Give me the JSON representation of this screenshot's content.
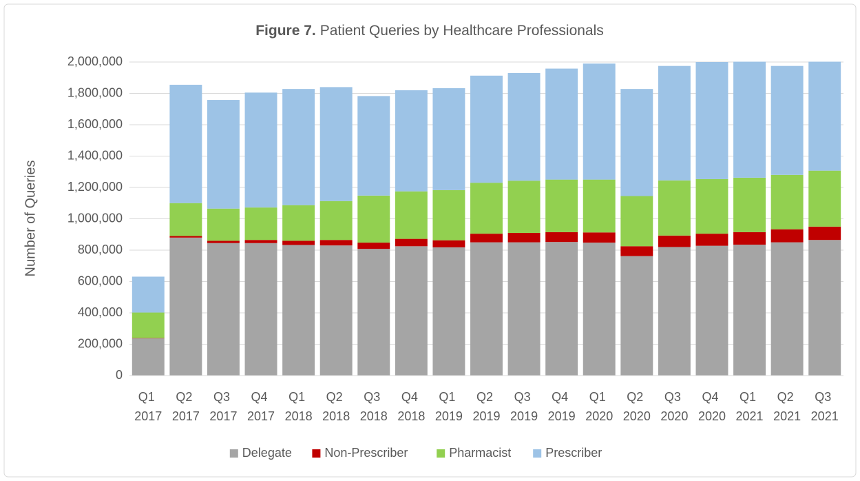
{
  "chart_data": {
    "type": "stacked_bar",
    "title_label": "Figure 7.",
    "title": "Patient Queries by Healthcare Professionals",
    "y_label": "Number of Queries",
    "categories": [
      "Q1 2017",
      "Q2 2017",
      "Q3 2017",
      "Q4 2017",
      "Q1 2018",
      "Q2 2018",
      "Q3 2018",
      "Q4 2018",
      "Q1 2019",
      "Q2 2019",
      "Q3 2019",
      "Q4 2019",
      "Q1 2020",
      "Q2 2020",
      "Q3 2020",
      "Q4 2020",
      "Q1 2021",
      "Q2 2021",
      "Q3 2021"
    ],
    "series": [
      {
        "name": "Delegate",
        "color": "#a5a5a5",
        "values": [
          237000,
          880000,
          845000,
          845000,
          833000,
          830000,
          808000,
          825000,
          818000,
          850000,
          850000,
          852000,
          848000,
          762000,
          820000,
          828000,
          835000,
          850000,
          865000
        ]
      },
      {
        "name": "Non-Prescriber",
        "color": "#c00000",
        "values": [
          2000,
          10000,
          15000,
          20000,
          27000,
          35000,
          40000,
          47000,
          45000,
          55000,
          60000,
          63000,
          65000,
          63000,
          73000,
          77000,
          80000,
          83000,
          85000
        ]
      },
      {
        "name": "Pharmacist",
        "color": "#92d050",
        "values": [
          163000,
          210000,
          205000,
          207000,
          227000,
          248000,
          300000,
          303000,
          320000,
          325000,
          333000,
          335000,
          337000,
          320000,
          352000,
          348000,
          347000,
          347000,
          357000
        ]
      },
      {
        "name": "Prescriber",
        "color": "#9dc3e6",
        "values": [
          229000,
          755000,
          693000,
          733000,
          741000,
          727000,
          635000,
          645000,
          650000,
          683000,
          687000,
          708000,
          740000,
          683000,
          730000,
          747000,
          740000,
          695000,
          695000
        ]
      }
    ],
    "ylim": [
      0,
      2000000
    ],
    "yticks": [
      0,
      {
        "value": 200000,
        "label": "200,000"
      },
      {
        "value": 400000,
        "label": "400,000"
      },
      {
        "value": 600000,
        "label": "600,000"
      },
      {
        "value": 800000,
        "label": "800,000"
      },
      {
        "value": 1000000,
        "label": "1,000,000"
      },
      {
        "value": 1200000,
        "label": "1,200,000"
      },
      {
        "value": 1400000,
        "label": "1,400,000"
      },
      {
        "value": 1600000,
        "label": "1,600,000"
      },
      {
        "value": 1800000,
        "label": "1,800,000"
      },
      {
        "value": 2000000,
        "label": "2,000,000"
      }
    ],
    "grid": true,
    "legend": "bottom"
  }
}
